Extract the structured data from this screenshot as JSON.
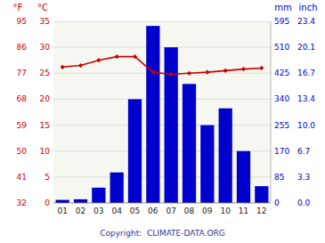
{
  "chart_data": {
    "type": "bar",
    "categories": [
      "01",
      "02",
      "03",
      "04",
      "05",
      "06",
      "07",
      "08",
      "09",
      "10",
      "11",
      "12"
    ],
    "series": [
      {
        "type": "bar",
        "color": "#0000cc",
        "values": [
          10,
          12,
          50,
          100,
          340,
          580,
          510,
          390,
          255,
          310,
          170,
          55
        ]
      },
      {
        "type": "line",
        "axis": "y2",
        "color": "#cc0000",
        "marker": "diamond",
        "values": [
          26.2,
          26.5,
          27.5,
          28.2,
          28.2,
          25.2,
          24.8,
          25.0,
          25.2,
          25.5,
          25.8,
          26.0
        ]
      }
    ],
    "ylabel": "mm",
    "ylim": [
      0,
      595
    ],
    "yticks": [
      0,
      85,
      170,
      255,
      340,
      425,
      510,
      595
    ],
    "y2label": "°C",
    "y2lim": [
      0,
      35
    ],
    "y2ticks": [
      0,
      5,
      10,
      15,
      20,
      25,
      30,
      35
    ],
    "y3label": "inch",
    "y3ticks": [
      {
        "value": 0,
        "label": "0.0"
      },
      {
        "value": 85,
        "label": "3.3"
      },
      {
        "value": 170,
        "label": "6.7"
      },
      {
        "value": 255,
        "label": "10.0"
      },
      {
        "value": 340,
        "label": "13.4"
      },
      {
        "value": 425,
        "label": "16.7"
      },
      {
        "value": 510,
        "label": "20.1"
      },
      {
        "value": 595,
        "label": "23.4"
      }
    ],
    "y4label": "°F",
    "y4lim": [
      32,
      95
    ],
    "y4ticks": [
      32,
      41,
      50,
      59,
      68,
      77,
      86,
      95
    ],
    "grid": true,
    "annotations": [
      "Copyright:  CLIMATE-DATA.ORG"
    ]
  }
}
